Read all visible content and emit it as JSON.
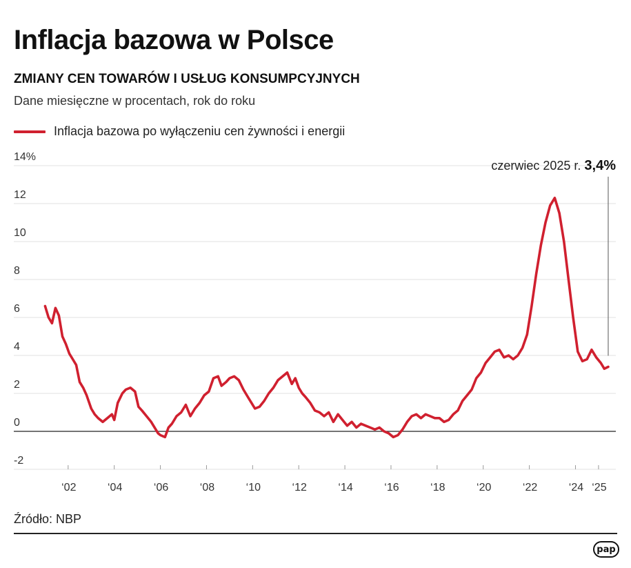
{
  "header": {
    "title": "Inflacja bazowa w Polsce",
    "subtitle": "ZMIANY CEN TOWARÓW I USŁUG KONSUMPCYJNYCH",
    "description": "Dane miesięczne w procentach, rok do roku"
  },
  "legend": {
    "label": "Inflacja bazowa po wyłączeniu cen żywności i energii",
    "color": "#d0202f"
  },
  "annotation": {
    "prefix": "czerwiec 2025 r. ",
    "value": "3,4%"
  },
  "footer": {
    "source": "Źródło: NBP",
    "logo": "pap"
  },
  "chart_data": {
    "type": "line",
    "ylim": [
      -2,
      14
    ],
    "xlim": [
      2000.6,
      2025.75
    ],
    "grid": true,
    "y_ticks": [
      -2,
      0,
      2,
      4,
      6,
      8,
      10,
      12,
      14
    ],
    "y_tick_labels": [
      "-2",
      "0",
      "2",
      "4",
      "6",
      "8",
      "10",
      "12",
      "14%"
    ],
    "x_ticks": [
      2002,
      2004,
      2006,
      2008,
      2010,
      2012,
      2014,
      2016,
      2018,
      2020,
      2022,
      2024,
      2025
    ],
    "x_tick_labels": [
      "‘02",
      "‘04",
      "‘06",
      "‘08",
      "‘10",
      "‘12",
      "‘14",
      "‘16",
      "‘18",
      "‘20",
      "‘22",
      "‘24",
      "‘25"
    ],
    "annotation_x": 2025.42,
    "series": [
      {
        "color": "#d0202f",
        "x": [
          2001.0,
          2001.15,
          2001.3,
          2001.45,
          2001.6,
          2001.75,
          2001.9,
          2002.05,
          2002.2,
          2002.35,
          2002.5,
          2002.65,
          2002.8,
          2003.0,
          2003.15,
          2003.3,
          2003.5,
          2003.7,
          2003.9,
          2004.0,
          2004.15,
          2004.35,
          2004.5,
          2004.7,
          2004.9,
          2005.05,
          2005.2,
          2005.4,
          2005.6,
          2005.8,
          2005.9,
          2006.0,
          2006.2,
          2006.35,
          2006.5,
          2006.7,
          2006.9,
          2007.1,
          2007.3,
          2007.5,
          2007.7,
          2007.9,
          2008.1,
          2008.3,
          2008.5,
          2008.65,
          2008.85,
          2009.0,
          2009.2,
          2009.4,
          2009.6,
          2009.8,
          2009.95,
          2010.1,
          2010.3,
          2010.5,
          2010.7,
          2010.9,
          2011.1,
          2011.3,
          2011.5,
          2011.7,
          2011.85,
          2012.0,
          2012.15,
          2012.3,
          2012.5,
          2012.7,
          2012.9,
          2013.1,
          2013.3,
          2013.5,
          2013.7,
          2013.9,
          2014.1,
          2014.3,
          2014.5,
          2014.7,
          2014.9,
          2015.1,
          2015.3,
          2015.5,
          2015.7,
          2015.9,
          2016.1,
          2016.3,
          2016.5,
          2016.7,
          2016.9,
          2017.1,
          2017.3,
          2017.5,
          2017.7,
          2017.9,
          2018.1,
          2018.3,
          2018.5,
          2018.7,
          2018.9,
          2019.1,
          2019.3,
          2019.5,
          2019.7,
          2019.9,
          2020.1,
          2020.3,
          2020.5,
          2020.7,
          2020.9,
          2021.1,
          2021.3,
          2021.5,
          2021.7,
          2021.9,
          2022.1,
          2022.3,
          2022.5,
          2022.7,
          2022.9,
          2023.1,
          2023.3,
          2023.5,
          2023.7,
          2023.9,
          2024.1,
          2024.3,
          2024.5,
          2024.7,
          2024.9,
          2025.1,
          2025.25,
          2025.42
        ],
        "values": [
          6.6,
          6.0,
          5.7,
          6.5,
          6.1,
          5.0,
          4.6,
          4.1,
          3.8,
          3.5,
          2.6,
          2.3,
          1.9,
          1.2,
          0.9,
          0.7,
          0.5,
          0.7,
          0.9,
          0.6,
          1.5,
          2.0,
          2.2,
          2.3,
          2.1,
          1.3,
          1.1,
          0.8,
          0.5,
          0.1,
          -0.1,
          -0.2,
          -0.3,
          0.2,
          0.4,
          0.8,
          1.0,
          1.4,
          0.8,
          1.2,
          1.5,
          1.9,
          2.1,
          2.8,
          2.9,
          2.4,
          2.6,
          2.8,
          2.9,
          2.7,
          2.2,
          1.8,
          1.5,
          1.2,
          1.3,
          1.6,
          2.0,
          2.3,
          2.7,
          2.9,
          3.1,
          2.5,
          2.8,
          2.3,
          2.0,
          1.8,
          1.5,
          1.1,
          1.0,
          0.8,
          1.0,
          0.5,
          0.9,
          0.6,
          0.3,
          0.5,
          0.2,
          0.4,
          0.3,
          0.2,
          0.1,
          0.2,
          0.0,
          -0.1,
          -0.3,
          -0.2,
          0.1,
          0.5,
          0.8,
          0.9,
          0.7,
          0.9,
          0.8,
          0.7,
          0.7,
          0.5,
          0.6,
          0.9,
          1.1,
          1.6,
          1.9,
          2.2,
          2.8,
          3.1,
          3.6,
          3.9,
          4.2,
          4.3,
          3.9,
          4.0,
          3.8,
          4.0,
          4.4,
          5.1,
          6.6,
          8.3,
          9.8,
          11.0,
          11.9,
          12.3,
          11.5,
          10.0,
          8.0,
          6.0,
          4.2,
          3.7,
          3.8,
          4.3,
          3.9,
          3.6,
          3.3,
          3.4
        ]
      }
    ]
  }
}
